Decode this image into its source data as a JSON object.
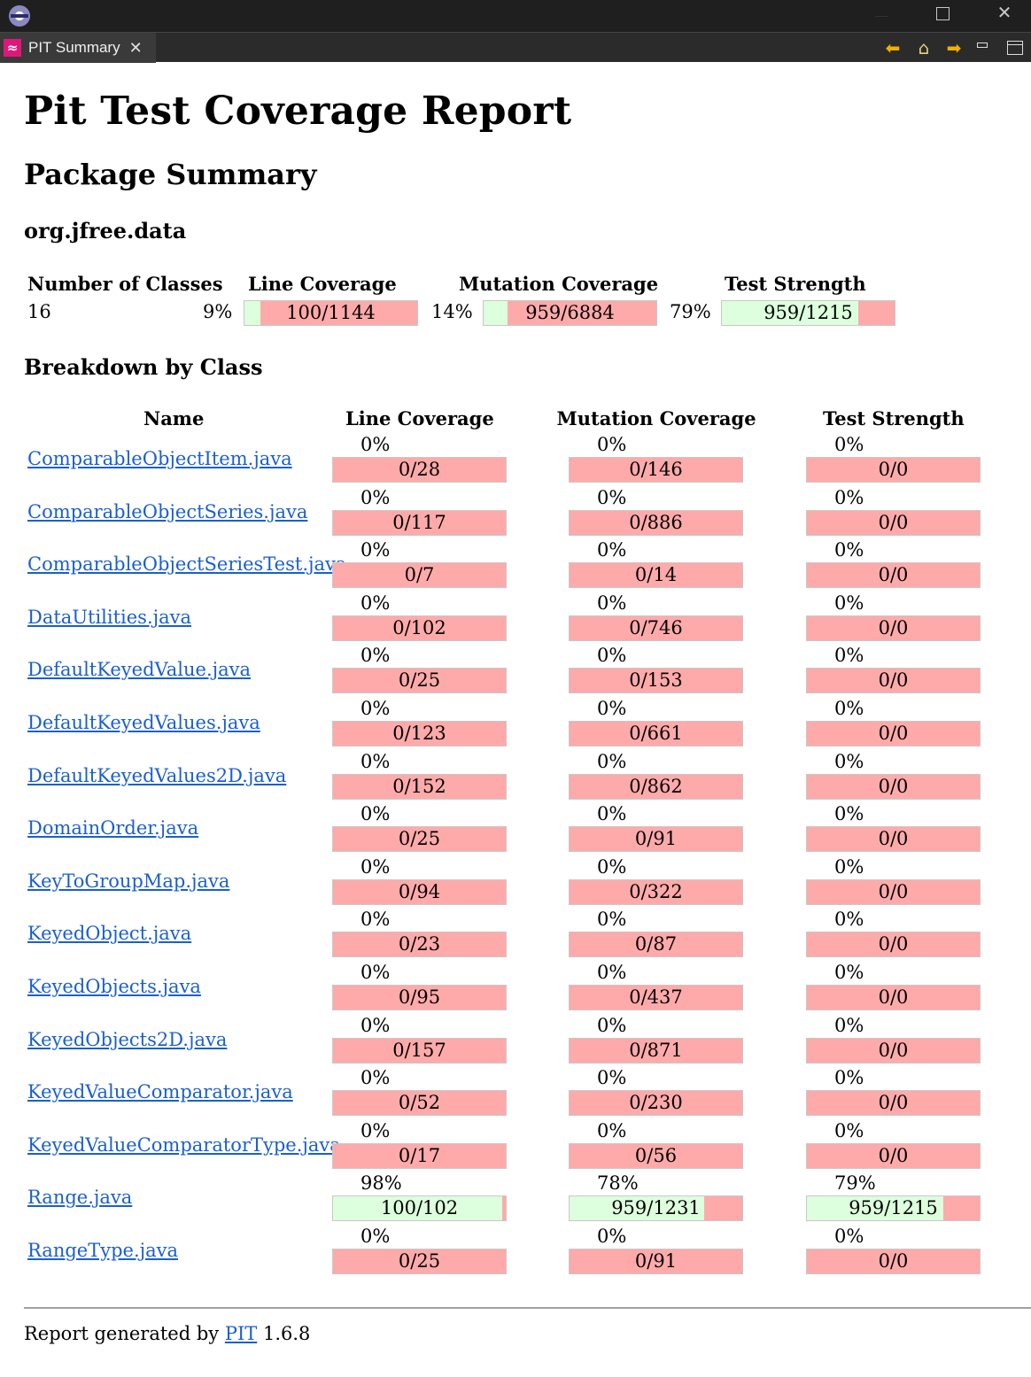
{
  "window": {
    "tab_label": "PIT Summary",
    "tab_icon": "≈",
    "tab_close": "✕",
    "close_glyph": "✕",
    "nav_back": "⬅",
    "nav_home": "⌂",
    "nav_forward": "➡"
  },
  "report": {
    "title": "Pit Test Coverage Report",
    "section_title": "Package Summary",
    "package_name": "org.jfree.data",
    "breakdown_title": "Breakdown by Class"
  },
  "summary": {
    "headers": {
      "classes": "Number of Classes",
      "line": "Line Coverage",
      "mutation": "Mutation Coverage",
      "strength": "Test Strength"
    },
    "classes": "16",
    "line": {
      "pct": "9%",
      "text": "100/1144",
      "fraction": 0.09
    },
    "mutation": {
      "pct": "14%",
      "text": "959/6884",
      "fraction": 0.14
    },
    "strength": {
      "pct": "79%",
      "text": "959/1215",
      "fraction": 0.79
    }
  },
  "breakdown": {
    "headers": {
      "name": "Name",
      "line": "Line Coverage",
      "mutation": "Mutation Coverage",
      "strength": "Test Strength"
    },
    "rows": [
      {
        "name": "ComparableObjectItem.java",
        "line_pct": "0%",
        "line_text": "0/28",
        "line_frac": 0,
        "mut_pct": "0%",
        "mut_text": "0/146",
        "mut_frac": 0,
        "str_pct": "0%",
        "str_text": "0/0",
        "str_frac": 0
      },
      {
        "name": "ComparableObjectSeries.java",
        "line_pct": "0%",
        "line_text": "0/117",
        "line_frac": 0,
        "mut_pct": "0%",
        "mut_text": "0/886",
        "mut_frac": 0,
        "str_pct": "0%",
        "str_text": "0/0",
        "str_frac": 0
      },
      {
        "name": "ComparableObjectSeriesTest.java",
        "line_pct": "0%",
        "line_text": "0/7",
        "line_frac": 0,
        "mut_pct": "0%",
        "mut_text": "0/14",
        "mut_frac": 0,
        "str_pct": "0%",
        "str_text": "0/0",
        "str_frac": 0
      },
      {
        "name": "DataUtilities.java",
        "line_pct": "0%",
        "line_text": "0/102",
        "line_frac": 0,
        "mut_pct": "0%",
        "mut_text": "0/746",
        "mut_frac": 0,
        "str_pct": "0%",
        "str_text": "0/0",
        "str_frac": 0
      },
      {
        "name": "DefaultKeyedValue.java",
        "line_pct": "0%",
        "line_text": "0/25",
        "line_frac": 0,
        "mut_pct": "0%",
        "mut_text": "0/153",
        "mut_frac": 0,
        "str_pct": "0%",
        "str_text": "0/0",
        "str_frac": 0
      },
      {
        "name": "DefaultKeyedValues.java",
        "line_pct": "0%",
        "line_text": "0/123",
        "line_frac": 0,
        "mut_pct": "0%",
        "mut_text": "0/661",
        "mut_frac": 0,
        "str_pct": "0%",
        "str_text": "0/0",
        "str_frac": 0
      },
      {
        "name": "DefaultKeyedValues2D.java",
        "line_pct": "0%",
        "line_text": "0/152",
        "line_frac": 0,
        "mut_pct": "0%",
        "mut_text": "0/862",
        "mut_frac": 0,
        "str_pct": "0%",
        "str_text": "0/0",
        "str_frac": 0
      },
      {
        "name": "DomainOrder.java",
        "line_pct": "0%",
        "line_text": "0/25",
        "line_frac": 0,
        "mut_pct": "0%",
        "mut_text": "0/91",
        "mut_frac": 0,
        "str_pct": "0%",
        "str_text": "0/0",
        "str_frac": 0
      },
      {
        "name": "KeyToGroupMap.java",
        "line_pct": "0%",
        "line_text": "0/94",
        "line_frac": 0,
        "mut_pct": "0%",
        "mut_text": "0/322",
        "mut_frac": 0,
        "str_pct": "0%",
        "str_text": "0/0",
        "str_frac": 0
      },
      {
        "name": "KeyedObject.java",
        "line_pct": "0%",
        "line_text": "0/23",
        "line_frac": 0,
        "mut_pct": "0%",
        "mut_text": "0/87",
        "mut_frac": 0,
        "str_pct": "0%",
        "str_text": "0/0",
        "str_frac": 0
      },
      {
        "name": "KeyedObjects.java",
        "line_pct": "0%",
        "line_text": "0/95",
        "line_frac": 0,
        "mut_pct": "0%",
        "mut_text": "0/437",
        "mut_frac": 0,
        "str_pct": "0%",
        "str_text": "0/0",
        "str_frac": 0
      },
      {
        "name": "KeyedObjects2D.java",
        "line_pct": "0%",
        "line_text": "0/157",
        "line_frac": 0,
        "mut_pct": "0%",
        "mut_text": "0/871",
        "mut_frac": 0,
        "str_pct": "0%",
        "str_text": "0/0",
        "str_frac": 0
      },
      {
        "name": "KeyedValueComparator.java",
        "line_pct": "0%",
        "line_text": "0/52",
        "line_frac": 0,
        "mut_pct": "0%",
        "mut_text": "0/230",
        "mut_frac": 0,
        "str_pct": "0%",
        "str_text": "0/0",
        "str_frac": 0
      },
      {
        "name": "KeyedValueComparatorType.java",
        "line_pct": "0%",
        "line_text": "0/17",
        "line_frac": 0,
        "mut_pct": "0%",
        "mut_text": "0/56",
        "mut_frac": 0,
        "str_pct": "0%",
        "str_text": "0/0",
        "str_frac": 0
      },
      {
        "name": "Range.java",
        "line_pct": "98%",
        "line_text": "100/102",
        "line_frac": 0.98,
        "mut_pct": "78%",
        "mut_text": "959/1231",
        "mut_frac": 0.78,
        "str_pct": "79%",
        "str_text": "959/1215",
        "str_frac": 0.79
      },
      {
        "name": "RangeType.java",
        "line_pct": "0%",
        "line_text": "0/25",
        "line_frac": 0,
        "mut_pct": "0%",
        "mut_text": "0/91",
        "mut_frac": 0,
        "str_pct": "0%",
        "str_text": "0/0",
        "str_frac": 0
      }
    ]
  },
  "footer": {
    "prefix": "Report generated by",
    "link": "PIT",
    "version": "1.6.8"
  },
  "colors": {
    "covered": "#ddffdd",
    "uncovered": "#ffaaaa",
    "link": "#1a5fd0"
  }
}
